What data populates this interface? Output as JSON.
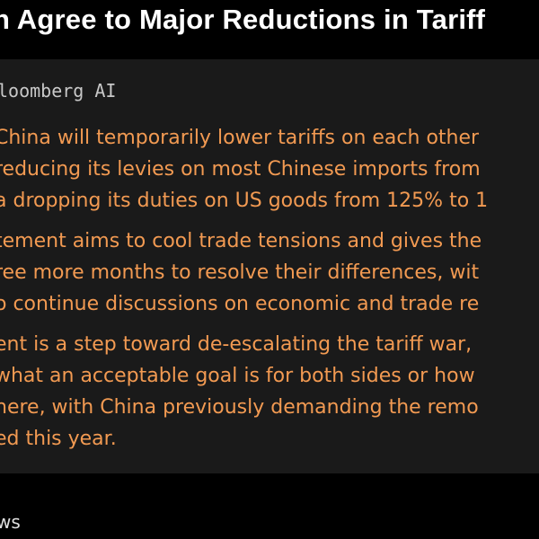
{
  "headline": {
    "text": "n Agree to Major Reductions in Tariff"
  },
  "panel": {
    "source": "loomberg AI",
    "paragraphs": [
      [
        "China will temporarily lower tariffs on each other",
        "reducing its levies on most Chinese imports from",
        "a dropping its duties on US goods from 125% to 1"
      ],
      [
        "tement aims to cool trade tensions and gives the",
        "ree more months to resolve their differences, wit",
        "o continue discussions on economic and trade re"
      ],
      [
        "ent is a step toward de-escalating the tariff war,",
        "what an acceptable goal is for both sides or how",
        "here, with China previously demanding the remo",
        "ed this year."
      ]
    ]
  },
  "footer": {
    "text": "ws"
  },
  "colors": {
    "background": "#000000",
    "panel": "#1a1a1a",
    "headline": "#ffffff",
    "source": "#c8c8c8",
    "body_text": "#f29a52"
  }
}
